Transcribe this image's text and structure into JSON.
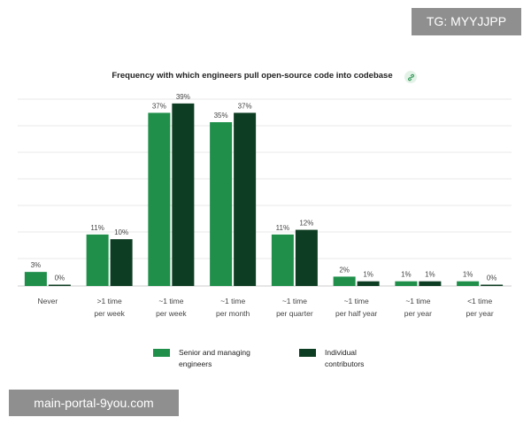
{
  "watermarks": {
    "top": "TG: MYYJJPP",
    "bottom": "main-portal-9you.com"
  },
  "colors": {
    "senior": "#1f8f4a",
    "individual": "#0d3d22",
    "grid": "#e8e8e8",
    "axis": "#cccccc",
    "text": "#444444"
  },
  "icons": {
    "title_link": "link-icon"
  },
  "chart_data": {
    "type": "bar",
    "title": "Frequency with which engineers pull open-source code into codebase",
    "xlabel": "",
    "ylabel": "",
    "ylim": [
      0,
      42
    ],
    "grid": true,
    "legend_position": "bottom",
    "categories": [
      [
        "Never"
      ],
      [
        ">1 time",
        "per week"
      ],
      [
        "~1 time",
        "per week"
      ],
      [
        "~1 time",
        "per month"
      ],
      [
        "~1 time",
        "per quarter"
      ],
      [
        "~1 time",
        "per half year"
      ],
      [
        "~1 time",
        "per year"
      ],
      [
        "<1 time",
        "per year"
      ]
    ],
    "series": [
      {
        "name": "Senior and managing engineers",
        "legend_lines": [
          "Senior and managing",
          "engineers"
        ],
        "values": [
          3,
          11,
          37,
          35,
          11,
          2,
          1,
          1
        ],
        "labels": [
          "3%",
          "11%",
          "37%",
          "35%",
          "11%",
          "2%",
          "1%",
          "1%"
        ]
      },
      {
        "name": "Individual contributors",
        "legend_lines": [
          "Individual",
          "contributors"
        ],
        "values": [
          0,
          10,
          39,
          37,
          12,
          1,
          1,
          0
        ],
        "labels": [
          "0%",
          "10%",
          "39%",
          "37%",
          "12%",
          "1%",
          "1%",
          "0%"
        ]
      }
    ]
  }
}
